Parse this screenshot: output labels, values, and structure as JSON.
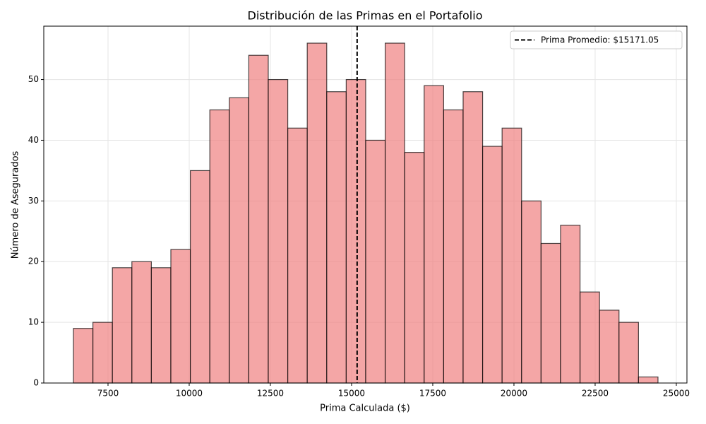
{
  "chart_data": {
    "type": "histogram",
    "title": "Distribución de las Primas en el Portafolio",
    "xlabel": "Prima Calculada ($)",
    "ylabel": "Número de Asegurados",
    "bins": [
      6435,
      7035,
      7635,
      8235,
      8835,
      9435,
      10035,
      10635,
      11235,
      11835,
      12435,
      13035,
      13635,
      14235,
      14835,
      15435,
      16035,
      16635,
      17235,
      17835,
      18435,
      19035,
      19635,
      20235,
      20835,
      21435,
      22035,
      22635,
      23235,
      23835,
      24435
    ],
    "values": [
      9,
      10,
      19,
      20,
      19,
      22,
      35,
      45,
      47,
      54,
      50,
      42,
      56,
      48,
      50,
      40,
      56,
      38,
      49,
      45,
      48,
      39,
      42,
      30,
      23,
      26,
      15,
      12,
      10,
      1
    ],
    "color": "#f08080",
    "mean_line": {
      "value": 15171.05,
      "label": "Prima Promedio: $15171.05"
    },
    "xlim": [
      5522,
      25327
    ],
    "ylim": [
      0,
      58.8
    ],
    "xticks": [
      7500,
      10000,
      12500,
      15000,
      17500,
      20000,
      22500,
      25000
    ],
    "yticks": [
      0,
      10,
      20,
      30,
      40,
      50
    ],
    "grid": true,
    "legend": "upper right"
  }
}
